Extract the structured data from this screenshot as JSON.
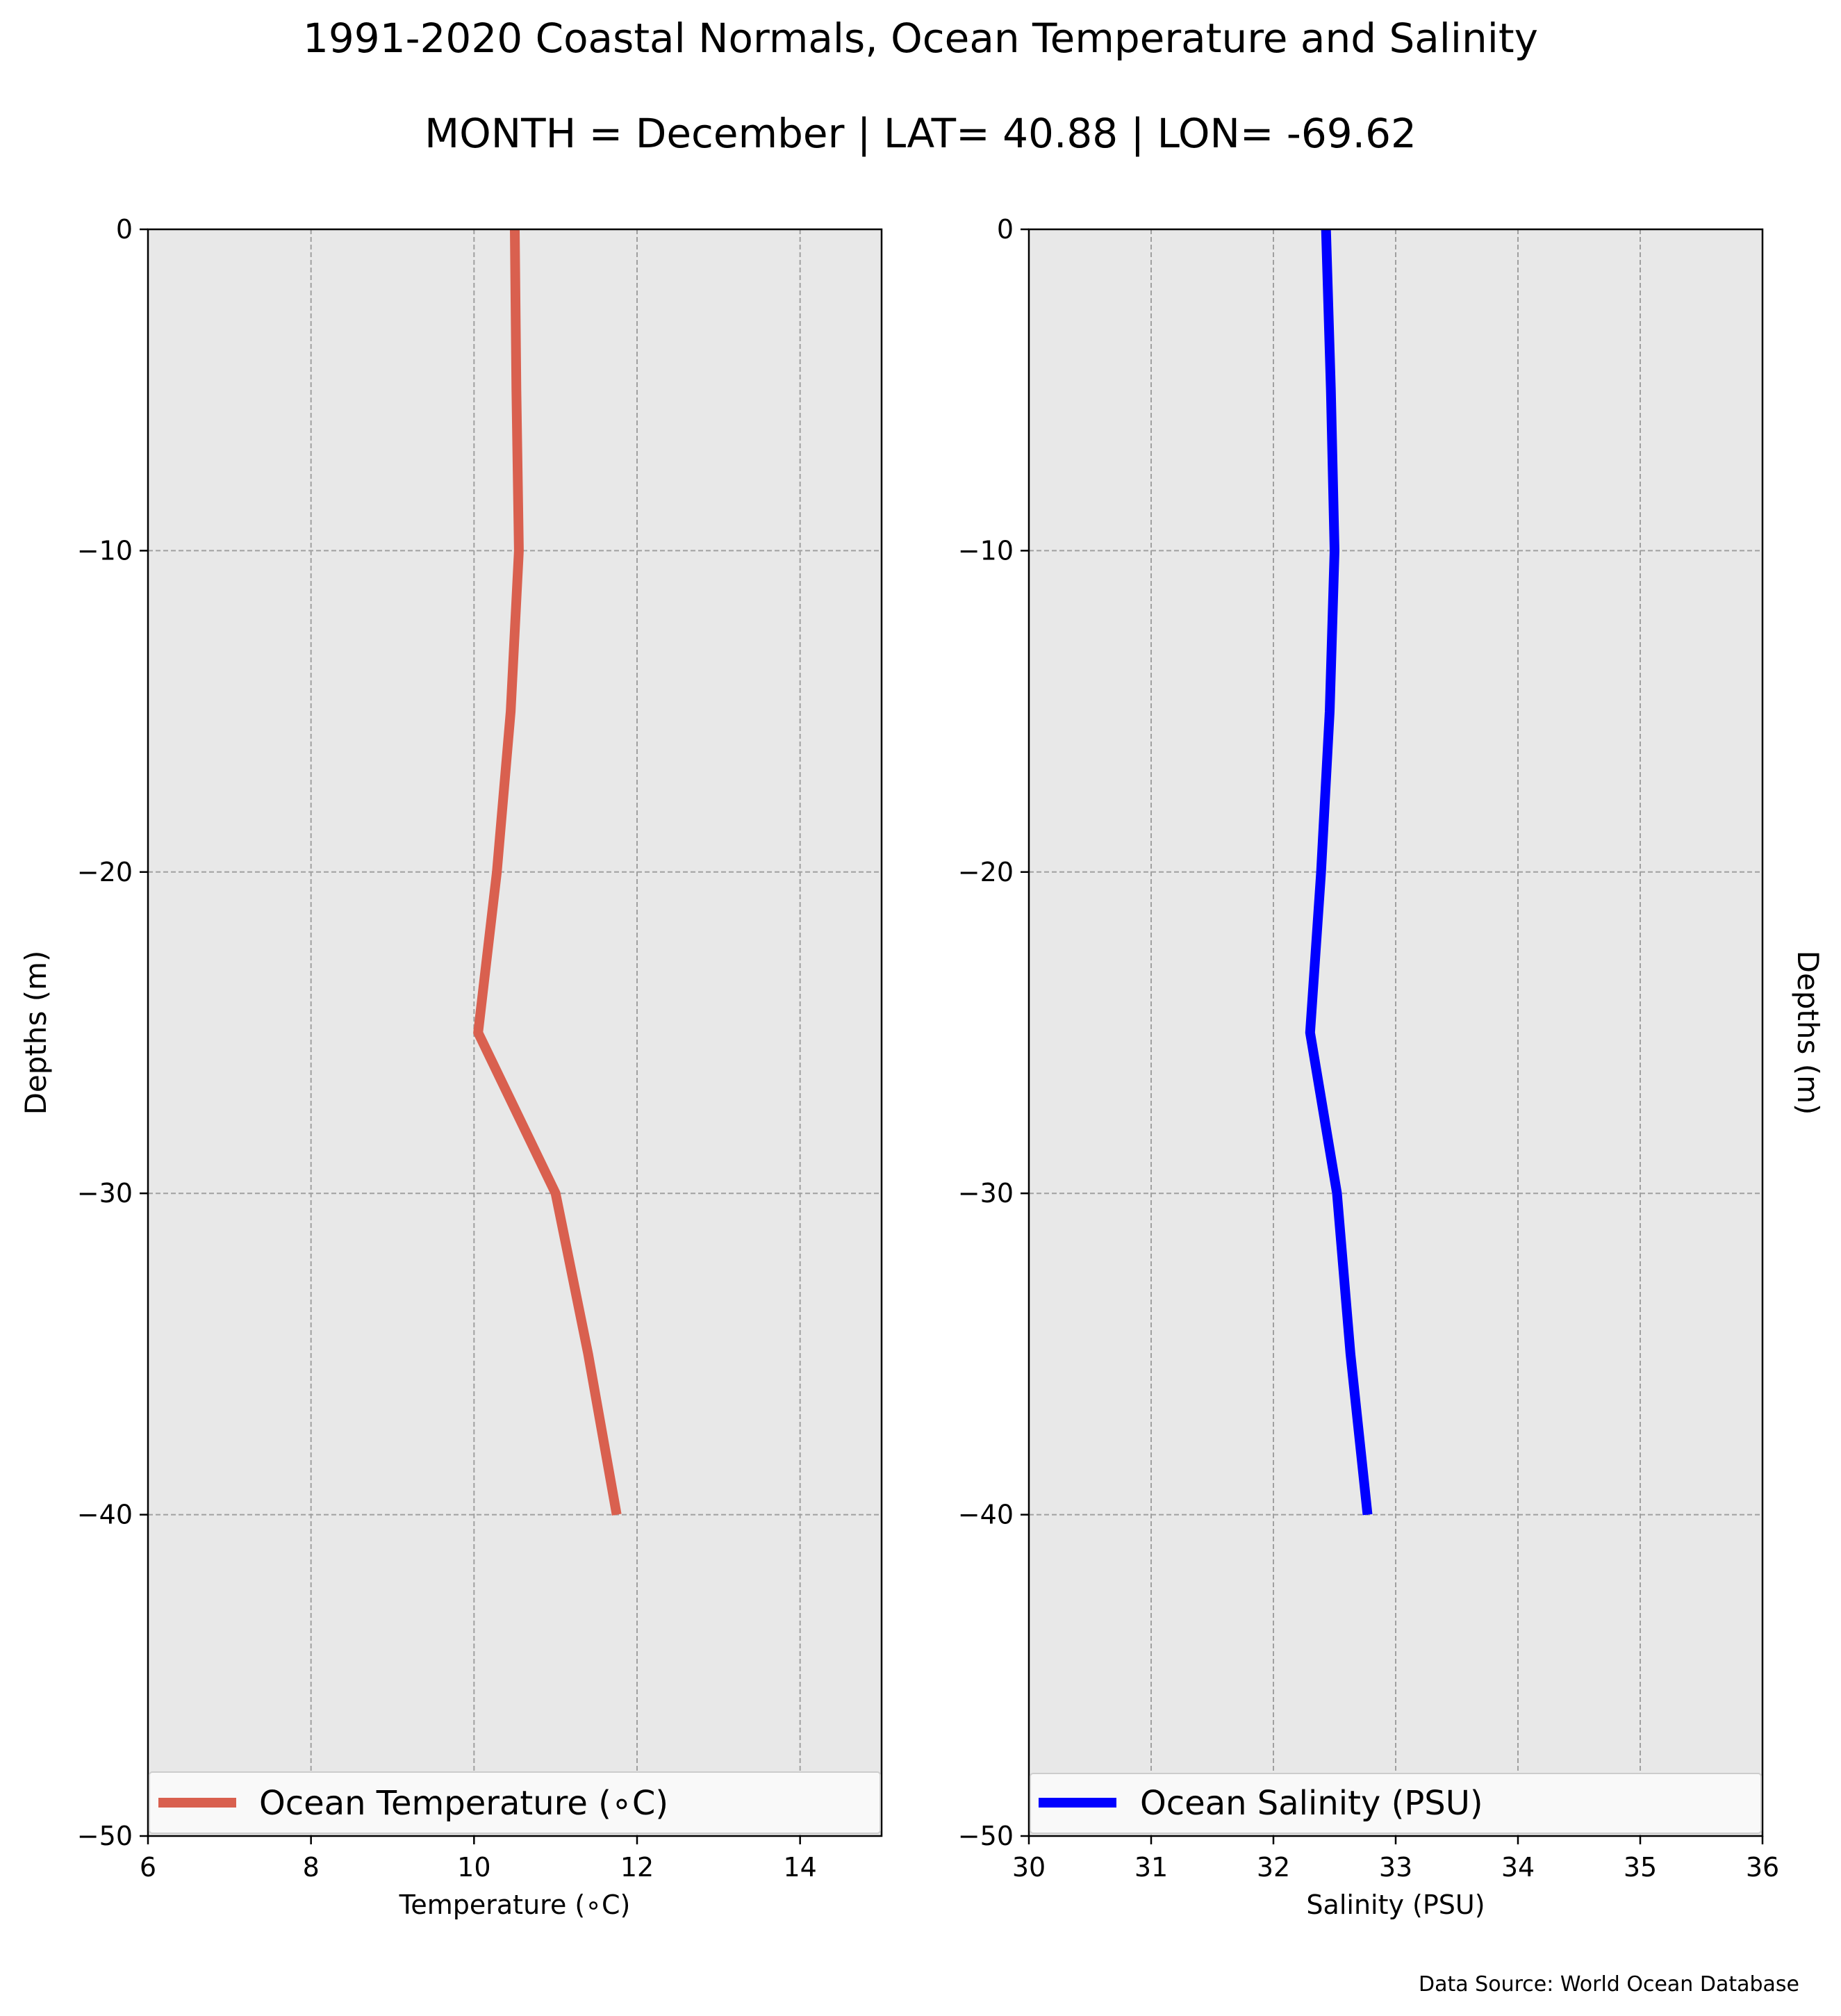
{
  "title_line1": "1991-2020 Coastal Normals, Ocean Temperature and Salinity",
  "title_line2": "MONTH = December | LAT= 40.88 | LON= -69.62",
  "source_note": "Data Source: World Ocean Database",
  "chart_data": [
    {
      "type": "line",
      "xlabel": "Temperature (∘C)",
      "ylabel": "Depths (m)",
      "xlim": [
        6,
        15
      ],
      "ylim": [
        -50,
        0
      ],
      "xticks": [
        6,
        8,
        10,
        12,
        14
      ],
      "xtick_labels": [
        "6",
        "8",
        "10",
        "12",
        "14"
      ],
      "yticks": [
        0,
        -10,
        -20,
        -30,
        -40,
        -50
      ],
      "ytick_labels": [
        "0",
        "−10",
        "−20",
        "−30",
        "−40",
        "−50"
      ],
      "grid": true,
      "legend_position": "bottom",
      "series": [
        {
          "name": "Ocean Temperature (∘C)",
          "color": "#d9604f",
          "points": [
            [
              10.5,
              0
            ],
            [
              10.52,
              -5
            ],
            [
              10.55,
              -10
            ],
            [
              10.45,
              -15
            ],
            [
              10.28,
              -20
            ],
            [
              10.05,
              -25
            ],
            [
              11.0,
              -30
            ],
            [
              11.4,
              -35
            ],
            [
              11.75,
              -40
            ]
          ]
        }
      ]
    },
    {
      "type": "line",
      "xlabel": "Salinity (PSU)",
      "ylabel": "Depths (m)",
      "xlim": [
        30,
        36
      ],
      "ylim": [
        -50,
        0
      ],
      "xticks": [
        30,
        31,
        32,
        33,
        34,
        35,
        36
      ],
      "xtick_labels": [
        "30",
        "31",
        "32",
        "33",
        "34",
        "35",
        "36"
      ],
      "yticks": [
        0,
        -10,
        -20,
        -30,
        -40,
        -50
      ],
      "ytick_labels": [
        "0",
        "−10",
        "−20",
        "−30",
        "−40",
        "−50"
      ],
      "grid": true,
      "legend_position": "bottom",
      "series": [
        {
          "name": "Ocean Salinity (PSU)",
          "color": "#0000ff",
          "points": [
            [
              32.43,
              0
            ],
            [
              32.47,
              -5
            ],
            [
              32.5,
              -10
            ],
            [
              32.46,
              -15
            ],
            [
              32.39,
              -20
            ],
            [
              32.3,
              -25
            ],
            [
              32.52,
              -30
            ],
            [
              32.63,
              -35
            ],
            [
              32.77,
              -40
            ]
          ]
        }
      ]
    }
  ]
}
